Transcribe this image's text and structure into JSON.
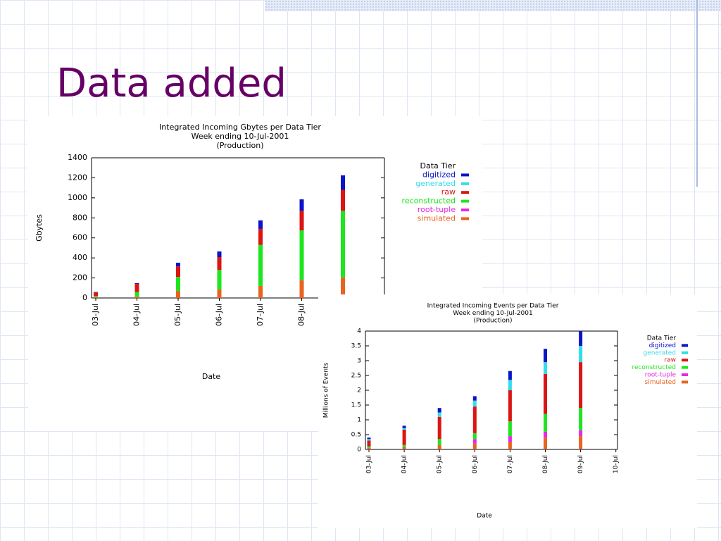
{
  "title": "Data added",
  "chart_data": [
    {
      "type": "bar",
      "stacked": true,
      "title": [
        "Integrated Incoming Gbytes per Data Tier",
        "Week ending 10-Jul-2001",
        "(Production)"
      ],
      "x_label": "Date",
      "y_label": "Gbytes",
      "legend_title": "Data Tier",
      "categories": [
        "03-Jul",
        "04-Jul",
        "05-Jul",
        "06-Jul",
        "07-Jul",
        "08-Jul",
        null
      ],
      "ylim": [
        0,
        1400
      ],
      "yticks": [
        0,
        200,
        400,
        600,
        800,
        1000,
        1200,
        1400
      ],
      "series": [
        {
          "name": "digitized",
          "color": "#0a14c8",
          "values": [
            5,
            8,
            37,
            57,
            85,
            115,
            145
          ]
        },
        {
          "name": "generated",
          "color": "#33dde8",
          "values": [
            0,
            0,
            0,
            0,
            0,
            0,
            0
          ]
        },
        {
          "name": "raw",
          "color": "#dc1414",
          "values": [
            35,
            80,
            105,
            128,
            160,
            195,
            210
          ]
        },
        {
          "name": "reconstructed",
          "color": "#1ee61e",
          "values": [
            10,
            45,
            140,
            195,
            410,
            495,
            665
          ]
        },
        {
          "name": "root-tuple",
          "color": "#e628e6",
          "values": [
            0,
            0,
            0,
            0,
            0,
            5,
            0
          ]
        },
        {
          "name": "simulated",
          "color": "#e8641e",
          "values": [
            10,
            15,
            70,
            85,
            120,
            175,
            205
          ]
        }
      ]
    },
    {
      "type": "bar",
      "stacked": true,
      "title": [
        "Integrated Incoming Events per Data Tier",
        "Week ending 10-Jul-2001",
        "(Production)"
      ],
      "x_label": "Date",
      "y_label": "Millions of Events",
      "legend_title": "Data Tier",
      "categories": [
        "03-Jul",
        "04-Jul",
        "05-Jul",
        "06-Jul",
        "07-Jul",
        "08-Jul",
        "09-Jul",
        "10-Jul"
      ],
      "ylim": [
        0,
        4
      ],
      "yticks": [
        0,
        0.5,
        1,
        1.5,
        2,
        2.5,
        3,
        3.5,
        4
      ],
      "series": [
        {
          "name": "digitized",
          "color": "#0a14c8",
          "values": [
            0.05,
            0.08,
            0.15,
            0.15,
            0.3,
            0.45,
            0.5,
            null
          ]
        },
        {
          "name": "generated",
          "color": "#33dde8",
          "values": [
            0.05,
            0.05,
            0.15,
            0.2,
            0.35,
            0.4,
            0.55,
            null
          ]
        },
        {
          "name": "raw",
          "color": "#dc1414",
          "values": [
            0.2,
            0.52,
            0.75,
            0.9,
            1.05,
            1.35,
            1.55,
            null
          ]
        },
        {
          "name": "reconstructed",
          "color": "#1ee61e",
          "values": [
            0.05,
            0.07,
            0.2,
            0.2,
            0.5,
            0.6,
            0.75,
            null
          ]
        },
        {
          "name": "root-tuple",
          "color": "#e628e6",
          "values": [
            0,
            0,
            0,
            0.15,
            0.2,
            0.2,
            0.2,
            null
          ]
        },
        {
          "name": "simulated",
          "color": "#e8641e",
          "values": [
            0.05,
            0.08,
            0.15,
            0.2,
            0.25,
            0.4,
            0.45,
            null
          ]
        }
      ]
    }
  ]
}
